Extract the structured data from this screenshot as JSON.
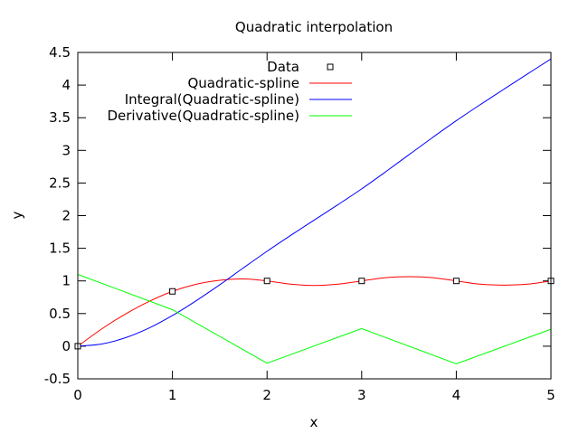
{
  "chart_data": {
    "type": "line",
    "title": "Quadratic interpolation",
    "xlabel": "x",
    "ylabel": "y",
    "xlim": [
      0,
      5
    ],
    "ylim": [
      -0.5,
      4.5
    ],
    "xticks": [
      "0",
      "1",
      "2",
      "3",
      "4",
      "5"
    ],
    "yticks": [
      "-0.5",
      "0",
      "0.5",
      "1",
      "1.5",
      "2",
      "2.5",
      "3",
      "3.5",
      "4",
      "4.5"
    ],
    "grid": false,
    "legend_position": "top-right",
    "series": [
      {
        "name": "Data",
        "style": "points",
        "color": "#000000",
        "x": [
          0,
          1,
          2,
          3,
          4,
          5
        ],
        "y": [
          0,
          0.84,
          1,
          1,
          1,
          1
        ]
      },
      {
        "name": "Quadratic-spline",
        "style": "line",
        "color": "#ff0000",
        "x": [
          0,
          0.25,
          0.5,
          0.75,
          1,
          1.25,
          1.5,
          1.75,
          2,
          2.25,
          2.5,
          2.75,
          3,
          3.25,
          3.5,
          3.75,
          4,
          4.25,
          4.5,
          4.75,
          5
        ],
        "y": [
          0,
          0.262,
          0.49,
          0.684,
          0.84,
          0.949,
          1.01,
          1.03,
          1,
          0.95,
          0.93,
          0.95,
          1,
          1.05,
          1.065,
          1.05,
          1,
          0.95,
          0.935,
          0.95,
          1
        ]
      },
      {
        "name": "Integral(Quadratic-spline)",
        "style": "line",
        "color": "#0000ff",
        "x": [
          0,
          0.25,
          0.5,
          0.75,
          1,
          1.25,
          1.5,
          1.75,
          2,
          2.25,
          2.5,
          2.75,
          3,
          3.25,
          3.5,
          3.75,
          4,
          4.25,
          4.5,
          4.75,
          5
        ],
        "y": [
          0,
          0.033,
          0.128,
          0.276,
          0.47,
          0.696,
          0.941,
          1.2,
          1.455,
          1.698,
          1.934,
          2.169,
          2.41,
          2.668,
          2.934,
          3.198,
          3.455,
          3.698,
          3.934,
          4.169,
          4.4
        ]
      },
      {
        "name": "Derivative(Quadratic-spline)",
        "style": "line",
        "color": "#00ff00",
        "x": [
          0,
          1,
          2,
          3,
          4,
          5
        ],
        "y": [
          1.1,
          0.56,
          -0.26,
          0.27,
          -0.27,
          0.26
        ]
      }
    ]
  }
}
